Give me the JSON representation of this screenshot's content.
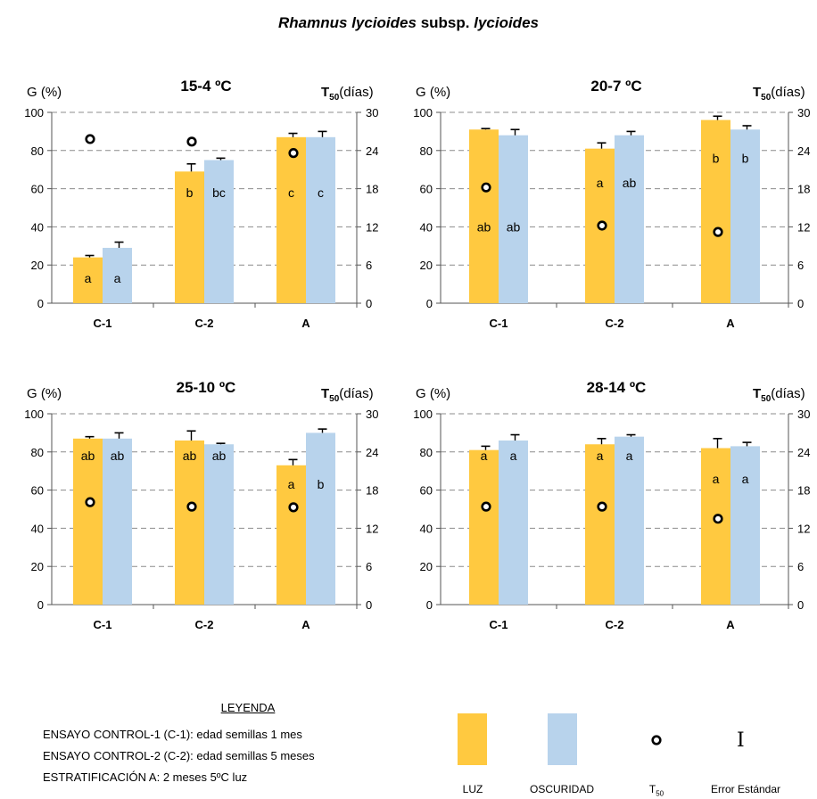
{
  "title": {
    "species_italic": "Rhamnus lycioides",
    "subsp": "subsp.",
    "infra_italic": "lycioides"
  },
  "colors": {
    "luz": "#FFC940",
    "oscuridad": "#B8D3EC",
    "grid": "#8c8c8c"
  },
  "chart_data": [
    {
      "type": "bar",
      "title": "15-4 ºC",
      "ylabel": "G (%)",
      "y2label_main": "T",
      "y2label_sub": "50",
      "y2label_unit": "(días)",
      "ylim": [
        0,
        100
      ],
      "y2lim": [
        0,
        30
      ],
      "yticks": [
        "0",
        "20",
        "40",
        "60",
        "80",
        "100"
      ],
      "y2ticks": [
        "0",
        "6",
        "12",
        "18",
        "24",
        "30"
      ],
      "categories": [
        "C-1",
        "C-2",
        "A"
      ],
      "series": [
        {
          "name": "LUZ",
          "values": [
            24,
            69,
            87
          ],
          "errors": [
            1,
            4,
            2
          ],
          "letters": [
            "a",
            "b",
            "c"
          ]
        },
        {
          "name": "OSCURIDAD",
          "values": [
            29,
            75,
            87
          ],
          "errors": [
            3,
            1,
            3
          ],
          "letters": [
            "a",
            "bc",
            "c"
          ]
        }
      ],
      "t50": [
        25.8,
        25.4,
        23.6
      ],
      "letter_y": [
        13,
        58,
        58
      ]
    },
    {
      "type": "bar",
      "title": "20-7 ºC",
      "ylabel": "G (%)",
      "y2label_main": "T",
      "y2label_sub": "50",
      "y2label_unit": "(días)",
      "ylim": [
        0,
        100
      ],
      "y2lim": [
        0,
        30
      ],
      "yticks": [
        "0",
        "20",
        "40",
        "60",
        "80",
        "100"
      ],
      "y2ticks": [
        "0",
        "6",
        "12",
        "18",
        "24",
        "30"
      ],
      "categories": [
        "C-1",
        "C-2",
        "A"
      ],
      "series": [
        {
          "name": "LUZ",
          "values": [
            91,
            81,
            96
          ],
          "errors": [
            0.5,
            3,
            2
          ],
          "letters": [
            "ab",
            "a",
            "b"
          ]
        },
        {
          "name": "OSCURIDAD",
          "values": [
            88,
            88,
            91
          ],
          "errors": [
            3,
            2,
            2
          ],
          "letters": [
            "ab",
            "ab",
            "b"
          ]
        }
      ],
      "t50": [
        18.2,
        12.2,
        11.2
      ],
      "letter_y": [
        40,
        63,
        76
      ]
    },
    {
      "type": "bar",
      "title": "25-10 ºC",
      "ylabel": "G (%)",
      "y2label_main": "T",
      "y2label_sub": "50",
      "y2label_unit": "(días)",
      "ylim": [
        0,
        100
      ],
      "y2lim": [
        0,
        30
      ],
      "yticks": [
        "0",
        "20",
        "40",
        "60",
        "80",
        "100"
      ],
      "y2ticks": [
        "0",
        "6",
        "12",
        "18",
        "24",
        "30"
      ],
      "categories": [
        "C-1",
        "C-2",
        "A"
      ],
      "series": [
        {
          "name": "LUZ",
          "values": [
            87,
            86,
            73
          ],
          "errors": [
            1,
            5,
            3
          ],
          "letters": [
            "ab",
            "ab",
            "a"
          ]
        },
        {
          "name": "OSCURIDAD",
          "values": [
            87,
            84,
            90
          ],
          "errors": [
            3,
            0.5,
            2
          ],
          "letters": [
            "ab",
            "ab",
            "b"
          ]
        }
      ],
      "t50": [
        16.1,
        15.4,
        15.3
      ],
      "letter_y": [
        78,
        78,
        63
      ]
    },
    {
      "type": "bar",
      "title": "28-14 ºC",
      "ylabel": "G (%)",
      "y2label_main": "T",
      "y2label_sub": "50",
      "y2label_unit": "(días)",
      "ylim": [
        0,
        100
      ],
      "y2lim": [
        0,
        30
      ],
      "yticks": [
        "0",
        "20",
        "40",
        "60",
        "80",
        "100"
      ],
      "y2ticks": [
        "0",
        "6",
        "12",
        "18",
        "24",
        "30"
      ],
      "categories": [
        "C-1",
        "C-2",
        "A"
      ],
      "series": [
        {
          "name": "LUZ",
          "values": [
            81,
            84,
            82
          ],
          "errors": [
            2,
            3,
            5
          ],
          "letters": [
            "a",
            "a",
            "a"
          ]
        },
        {
          "name": "OSCURIDAD",
          "values": [
            86,
            88,
            83
          ],
          "errors": [
            3,
            1,
            2
          ],
          "letters": [
            "a",
            "a",
            "a"
          ]
        }
      ],
      "t50": [
        15.4,
        15.4,
        13.5
      ],
      "letter_y": [
        78,
        78,
        66
      ]
    }
  ],
  "legend": {
    "title": "LEYENDA",
    "lines": [
      "ENSAYO CONTROL-1 (C-1): edad semillas 1 mes",
      "ENSAYO CONTROL-2 (C-2): edad semillas 5 meses",
      "ESTRATIFICACIÓN A: 2 meses 5ºC luz"
    ],
    "key_luz": "LUZ",
    "key_oscuridad": "OSCURIDAD",
    "key_t50_main": "T",
    "key_t50_sub": "50",
    "key_error": "Error Estándar",
    "key_error_symbol": "I"
  }
}
